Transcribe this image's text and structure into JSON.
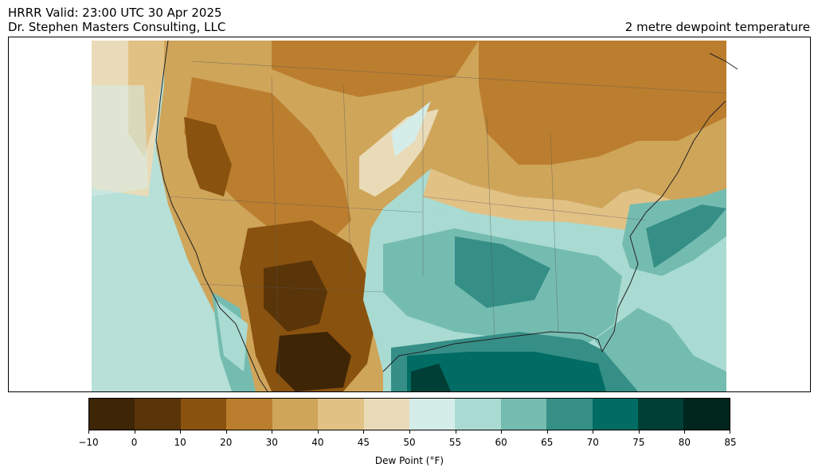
{
  "header": {
    "line1": "HRRR  Valid: 23:00 UTC 30 Apr 2025",
    "line2": "Dr. Stephen Masters Consulting, LLC",
    "field_title": "2 metre dewpoint temperature"
  },
  "colorbar": {
    "label": "Dew Point (°F)",
    "ticks": [
      "−10",
      "0",
      "10",
      "20",
      "30",
      "40",
      "45",
      "50",
      "55",
      "60",
      "65",
      "70",
      "75",
      "80",
      "85"
    ],
    "segments": [
      {
        "from": -10,
        "to": 0,
        "color": "#3d2506"
      },
      {
        "from": 0,
        "to": 10,
        "color": "#5a3509"
      },
      {
        "from": 10,
        "to": 20,
        "color": "#8a520f"
      },
      {
        "from": 20,
        "to": 30,
        "color": "#bb7e2e"
      },
      {
        "from": 30,
        "to": 40,
        "color": "#cfa55a"
      },
      {
        "from": 40,
        "to": 45,
        "color": "#e2c185"
      },
      {
        "from": 45,
        "to": 50,
        "color": "#eadbb8"
      },
      {
        "from": 50,
        "to": 55,
        "color": "#d5ede8"
      },
      {
        "from": 55,
        "to": 60,
        "color": "#a9dbd2"
      },
      {
        "from": 60,
        "to": 65,
        "color": "#75bcb0"
      },
      {
        "from": 65,
        "to": 70,
        "color": "#358f87"
      },
      {
        "from": 70,
        "to": 75,
        "color": "#016c63"
      },
      {
        "from": 75,
        "to": 80,
        "color": "#003f35"
      },
      {
        "from": 80,
        "to": 85,
        "color": "#00261e"
      }
    ]
  }
}
